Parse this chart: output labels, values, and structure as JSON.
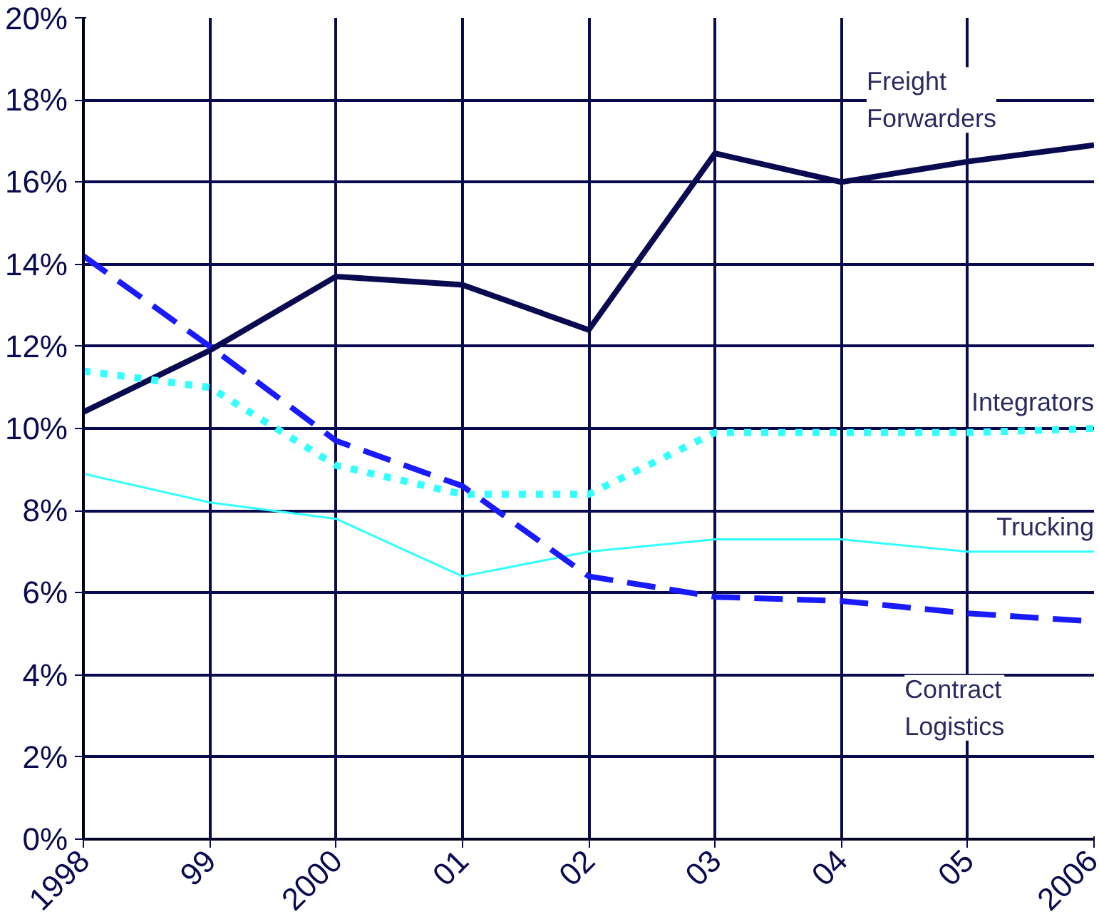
{
  "chart_data": {
    "type": "line",
    "categories": [
      "1998",
      "99",
      "2000",
      "01",
      "02",
      "03",
      "04",
      "05",
      "2006"
    ],
    "ylim": [
      0,
      20
    ],
    "yticks": [
      {
        "value": 0,
        "label": "0%"
      },
      {
        "value": 2,
        "label": "2%"
      },
      {
        "value": 4,
        "label": "4%"
      },
      {
        "value": 6,
        "label": "6%"
      },
      {
        "value": 8,
        "label": "8%"
      },
      {
        "value": 10,
        "label": "10%"
      },
      {
        "value": 12,
        "label": "12%"
      },
      {
        "value": 14,
        "label": "14%"
      },
      {
        "value": 16,
        "label": "16%"
      },
      {
        "value": 18,
        "label": "18%"
      },
      {
        "value": 20,
        "label": "20%"
      }
    ],
    "grid": true,
    "series": [
      {
        "name": "Freight\nForwarders",
        "color": "#0a0a50",
        "line_style": "solid",
        "values": [
          10.4,
          11.9,
          13.7,
          13.5,
          12.4,
          16.7,
          16.0,
          16.5,
          16.9
        ]
      },
      {
        "name": "Integrators",
        "color": "#33ffff",
        "line_style": "dotted",
        "values": [
          11.4,
          11.0,
          9.1,
          8.4,
          8.4,
          9.9,
          9.9,
          9.9,
          10.0
        ]
      },
      {
        "name": "Trucking",
        "color": "#33ffff",
        "line_style": "solid",
        "values": [
          8.9,
          8.2,
          7.8,
          6.4,
          7.0,
          7.3,
          7.3,
          7.0,
          7.0
        ]
      },
      {
        "name": "Contract\nLogistics",
        "color": "#1a1aff",
        "line_style": "dashed",
        "values": [
          14.2,
          12.0,
          9.7,
          8.6,
          6.4,
          5.9,
          5.8,
          5.5,
          5.3
        ]
      }
    ]
  }
}
